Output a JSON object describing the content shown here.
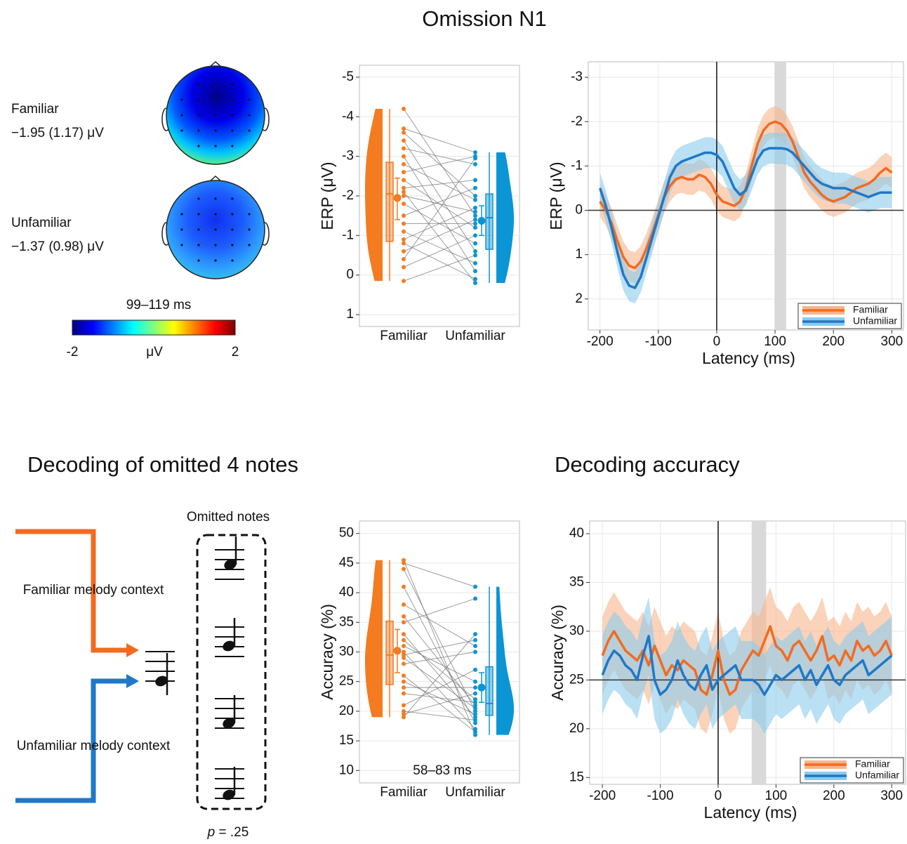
{
  "title": "Omission N1",
  "topomap": {
    "conditions": [
      {
        "label": "Familiar",
        "value": "−1.95 (1.17) μV"
      },
      {
        "label": "Unfamiliar",
        "value": "−1.37 (0.98) μV"
      }
    ],
    "window": "99–119 ms",
    "colorbar": {
      "min": -2,
      "max": 2,
      "unit": "μV"
    }
  },
  "section_title": "Decoding of omitted 4 notes",
  "diagram": {
    "omitted_label": "Omitted notes",
    "familiar_context": "Familiar melody context",
    "unfamiliar_context": "Unfamiliar melody context",
    "p_label": "p",
    "p_value": "= .25"
  },
  "chart_data": [
    {
      "type": "raincloud",
      "ylabel": "ERP (μV)",
      "ylim": [
        1.3,
        -5.3
      ],
      "yticks": [
        -5,
        -4,
        -3,
        -2,
        -1,
        0,
        1
      ],
      "grid": true,
      "groups": [
        {
          "name": "Familiar",
          "color": "#f47b20",
          "points": [
            -4.2,
            -3.7,
            -3.6,
            -3.4,
            -3.2,
            -3.0,
            -2.8,
            -2.6,
            -2.4,
            -2.2,
            -2.1,
            -2.0,
            -1.8,
            -1.5,
            -1.3,
            -1.1,
            -0.9,
            -0.8,
            -0.6,
            -0.4,
            -0.2,
            0.15
          ],
          "box": {
            "min": -4.2,
            "q1": -2.85,
            "median": -2.05,
            "q3": -0.85,
            "max": 0.15
          },
          "mean": -1.95,
          "ci": [
            -2.45,
            -1.4
          ]
        },
        {
          "name": "Unfamiliar",
          "color": "#0b95d4",
          "points": [
            -1.5,
            -3.1,
            -2.0,
            -0.6,
            -2.8,
            -0.1,
            -1.9,
            -3.0,
            -1.2,
            -2.4,
            0.2,
            -1.6,
            -0.8,
            -2.2,
            -1.3,
            -0.3,
            -1.7,
            0.1,
            -1.4,
            -2.95,
            -1.0,
            -0.5
          ],
          "box": {
            "min": -3.1,
            "q1": -2.05,
            "median": -1.45,
            "q3": -0.65,
            "max": 0.2
          },
          "mean": -1.37,
          "ci": [
            -1.75,
            -1.0
          ]
        }
      ]
    },
    {
      "type": "line",
      "ylabel": "ERP (μV)",
      "xlabel": "Latency (ms)",
      "x": [
        -200,
        -190,
        -180,
        -170,
        -160,
        -150,
        -140,
        -130,
        -120,
        -110,
        -100,
        -90,
        -80,
        -70,
        -60,
        -50,
        -40,
        -30,
        -20,
        -10,
        0,
        10,
        20,
        30,
        40,
        50,
        60,
        70,
        80,
        90,
        100,
        110,
        120,
        130,
        140,
        150,
        160,
        170,
        180,
        190,
        200,
        210,
        220,
        230,
        240,
        250,
        260,
        270,
        280,
        290,
        300
      ],
      "xlim": [
        -220,
        320
      ],
      "xticks": [
        -200,
        -100,
        0,
        100,
        200,
        300
      ],
      "ylim": [
        2.7,
        -3.35
      ],
      "yticks": [
        -3,
        -2,
        -1,
        0,
        1,
        2
      ],
      "grid": true,
      "highlight": [
        99,
        119
      ],
      "reference_lines": {
        "x": 0,
        "y": 0
      },
      "legend": "bottom-right",
      "series": [
        {
          "name": "Familiar",
          "color": "#f26b21",
          "band_color": "#f8b58c",
          "ci": 0.35,
          "values": [
            -0.2,
            0,
            0.3,
            0.7,
            1.05,
            1.25,
            1.3,
            1.15,
            0.85,
            0.5,
            0.1,
            -0.3,
            -0.55,
            -0.7,
            -0.75,
            -0.7,
            -0.7,
            -0.8,
            -0.75,
            -0.6,
            -0.35,
            -0.2,
            -0.15,
            -0.1,
            -0.2,
            -0.5,
            -1.0,
            -1.5,
            -1.8,
            -1.95,
            -2.0,
            -1.95,
            -1.8,
            -1.55,
            -1.2,
            -0.85,
            -0.65,
            -0.5,
            -0.35,
            -0.25,
            -0.2,
            -0.25,
            -0.3,
            -0.4,
            -0.5,
            -0.55,
            -0.6,
            -0.7,
            -0.85,
            -0.95,
            -0.85
          ]
        },
        {
          "name": "Unfamiliar",
          "color": "#1f78c8",
          "band_color": "#8ccbec",
          "ci": 0.35,
          "values": [
            -0.5,
            -0.1,
            0.4,
            0.95,
            1.45,
            1.7,
            1.75,
            1.5,
            1.05,
            0.6,
            0.15,
            -0.3,
            -0.75,
            -1.0,
            -1.1,
            -1.15,
            -1.2,
            -1.25,
            -1.3,
            -1.3,
            -1.25,
            -1.1,
            -0.8,
            -0.5,
            -0.35,
            -0.45,
            -0.8,
            -1.15,
            -1.35,
            -1.4,
            -1.4,
            -1.4,
            -1.38,
            -1.3,
            -1.15,
            -1.0,
            -0.85,
            -0.7,
            -0.6,
            -0.55,
            -0.5,
            -0.5,
            -0.5,
            -0.45,
            -0.4,
            -0.35,
            -0.3,
            -0.35,
            -0.4,
            -0.4,
            -0.4
          ]
        }
      ]
    },
    {
      "type": "raincloud",
      "ylabel": "Accuracy (%)",
      "ylim": [
        7.9,
        52.1
      ],
      "yticks": [
        10,
        15,
        20,
        25,
        30,
        35,
        40,
        45,
        50
      ],
      "grid": true,
      "annotation": "58–83 ms",
      "groups": [
        {
          "name": "Familiar",
          "color": "#f47b20",
          "points": [
            45.5,
            45,
            44,
            41,
            38,
            36,
            35,
            33,
            32,
            31,
            30,
            29.5,
            29,
            28,
            26,
            25,
            24,
            23,
            21,
            20,
            19.5,
            19
          ],
          "box": {
            "min": 19,
            "q1": 24.5,
            "median": 29.5,
            "q3": 35.2,
            "max": 45.5
          },
          "mean": 30.2,
          "ci": [
            26.5,
            33.8
          ]
        },
        {
          "name": "Unfamiliar",
          "color": "#0b95d4",
          "points": [
            16,
            41,
            20,
            18,
            31,
            21,
            39,
            19,
            22,
            25,
            17,
            32,
            20.5,
            30,
            16.5,
            19.5,
            24,
            21.5,
            27,
            18.5,
            23,
            33
          ],
          "box": {
            "min": 16,
            "q1": 19.3,
            "median": 21.3,
            "q3": 27.5,
            "max": 41
          },
          "mean": 24,
          "ci": [
            21.5,
            26.5
          ]
        }
      ]
    },
    {
      "type": "line",
      "title": "Decoding accuracy",
      "ylabel": "Accuracy (%)",
      "xlabel": "Latency (ms)",
      "x": [
        -200,
        -190,
        -180,
        -170,
        -160,
        -150,
        -140,
        -130,
        -120,
        -110,
        -100,
        -90,
        -80,
        -70,
        -60,
        -50,
        -40,
        -30,
        -20,
        -10,
        0,
        10,
        20,
        30,
        40,
        50,
        60,
        70,
        80,
        90,
        100,
        110,
        120,
        130,
        140,
        150,
        160,
        170,
        180,
        190,
        200,
        210,
        220,
        230,
        240,
        250,
        260,
        270,
        280,
        290,
        300
      ],
      "xlim": [
        -222,
        324
      ],
      "xticks": [
        -200,
        -100,
        0,
        100,
        200,
        300
      ],
      "ylim": [
        14.3,
        41.3
      ],
      "yticks": [
        15,
        20,
        25,
        30,
        35,
        40
      ],
      "grid": true,
      "highlight": [
        58,
        83
      ],
      "reference_lines": {
        "x": 0,
        "y": 25
      },
      "legend": "bottom-right",
      "series": [
        {
          "name": "Familiar",
          "color": "#f26b21",
          "band_color": "#f8b58c",
          "ci": 4,
          "values": [
            27.5,
            29,
            30,
            29,
            28,
            27.5,
            27,
            28,
            26.5,
            28.5,
            27,
            25.5,
            26.5,
            26,
            27,
            26.5,
            26,
            24,
            23.5,
            25.5,
            28,
            25,
            23.5,
            24,
            26,
            27,
            28,
            27.5,
            29,
            30.5,
            28.5,
            28,
            27,
            28.5,
            29,
            28,
            27,
            28,
            29.5,
            27,
            27.5,
            26.5,
            28,
            27,
            29,
            28,
            28.5,
            27.5,
            28,
            29,
            27.5
          ]
        },
        {
          "name": "Unfamiliar",
          "color": "#1f78c8",
          "band_color": "#8ccbec",
          "ci": 4,
          "values": [
            25.5,
            27,
            28,
            27.5,
            26.5,
            26,
            25,
            27.5,
            29.5,
            25,
            23.5,
            24,
            25,
            27,
            25.5,
            24.5,
            24,
            25.5,
            26.5,
            24,
            25,
            25.5,
            26,
            26.5,
            25,
            25,
            25,
            24.5,
            23.5,
            24.5,
            25.5,
            25,
            25.5,
            26,
            26.5,
            25,
            26,
            24.5,
            25.5,
            26.5,
            25,
            24.5,
            25.5,
            26,
            26.5,
            27,
            25.5,
            26,
            26.5,
            27,
            27.5
          ]
        }
      ]
    }
  ]
}
